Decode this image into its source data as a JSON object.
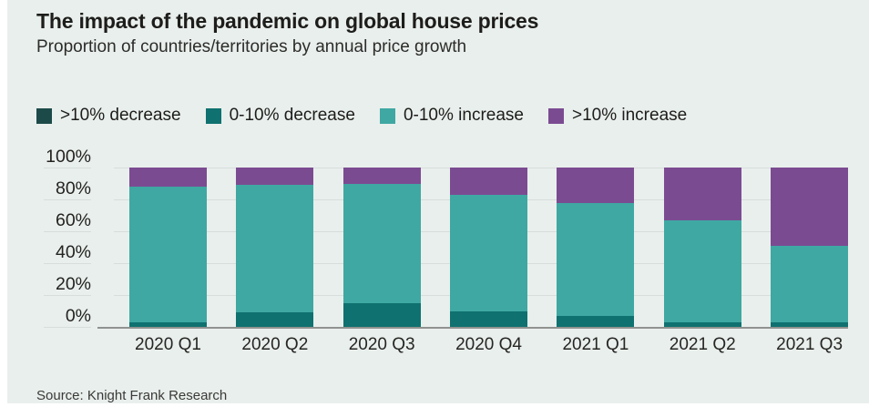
{
  "page": {
    "source": "Source: Knight Frank Research",
    "background": "#e9efec",
    "colors": {
      "title_text": "#1d1d1b",
      "axis_text": "#232321",
      "gridline": "#d6dddb",
      "baseline": "#8f928f"
    }
  },
  "chart_data": {
    "type": "bar",
    "stacked": true,
    "stack_total": 100,
    "title": "The impact of the pandemic on global house prices",
    "subtitle": "Proportion of countries/territories by annual price growth",
    "categories": [
      "2020 Q1",
      "2020 Q2",
      "2020 Q3",
      "2020 Q4",
      "2021 Q1",
      "2021 Q2",
      "2021 Q3"
    ],
    "series": [
      {
        "name": ">10% decrease",
        "color": "#1c4a49",
        "values": [
          0,
          0,
          0,
          0,
          0,
          0,
          0
        ]
      },
      {
        "name": "0-10% decrease",
        "color": "#0f7170",
        "values": [
          3,
          9,
          15,
          10,
          7,
          3,
          3
        ]
      },
      {
        "name": "0-10% increase",
        "color": "#3fa8a3",
        "values": [
          85,
          80,
          75,
          73,
          71,
          64,
          48
        ]
      },
      {
        "name": ">10% increase",
        "color": "#7b4b92",
        "values": [
          12,
          11,
          10,
          17,
          22,
          33,
          49
        ]
      }
    ],
    "xlabel": "",
    "ylabel": "",
    "ylim": [
      0,
      100
    ],
    "y_axis": {
      "ticks": [
        {
          "label": "0%",
          "value": 0
        },
        {
          "label": "20%",
          "value": 20
        },
        {
          "label": "40%",
          "value": 40
        },
        {
          "label": "60%",
          "value": 60
        },
        {
          "label": "80%",
          "value": 80
        },
        {
          "label": "100%",
          "value": 100
        }
      ]
    },
    "grid": true,
    "legend_position": "top"
  }
}
